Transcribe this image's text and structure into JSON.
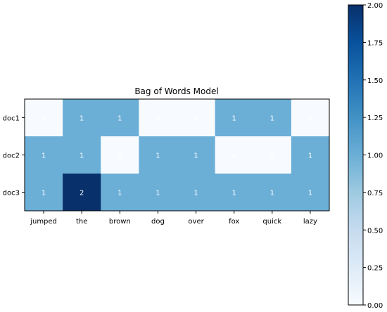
{
  "chart_data": {
    "type": "heatmap",
    "title": "Bag of Words Model",
    "xlabel": "",
    "ylabel": "",
    "columns": [
      "jumped",
      "the",
      "brown",
      "dog",
      "over",
      "fox",
      "quick",
      "lazy"
    ],
    "rows": [
      "doc1",
      "doc2",
      "doc3"
    ],
    "values": [
      [
        0,
        1,
        1,
        0,
        0,
        1,
        1,
        0
      ],
      [
        1,
        1,
        0,
        1,
        1,
        0,
        0,
        1
      ],
      [
        1,
        2,
        1,
        1,
        1,
        1,
        1,
        1
      ]
    ],
    "colormap": "Blues",
    "vmin": 0,
    "vmax": 2,
    "colorbar_ticks": [
      "0.00",
      "0.25",
      "0.50",
      "0.75",
      "1.00",
      "1.25",
      "1.50",
      "1.75",
      "2.00"
    ]
  }
}
